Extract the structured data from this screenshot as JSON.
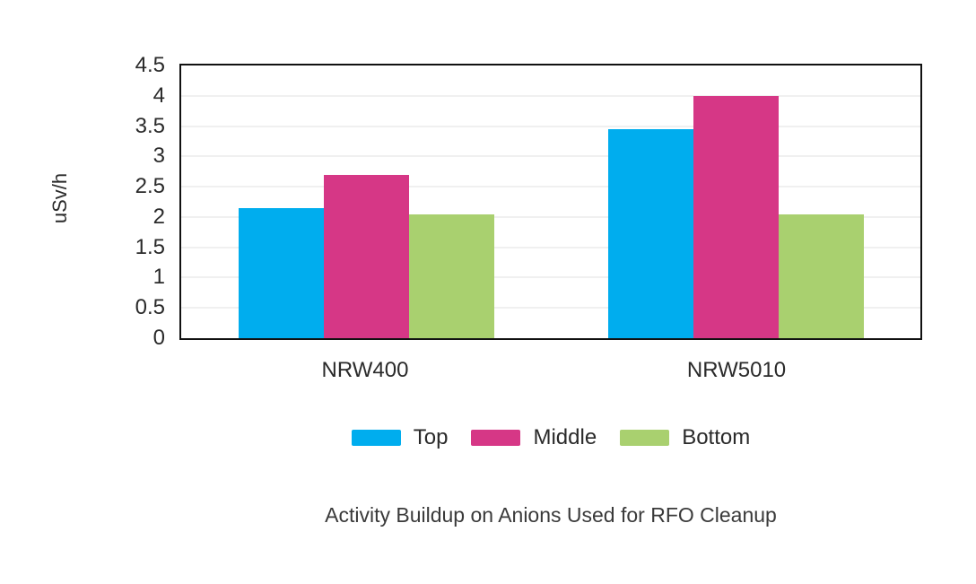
{
  "chart_data": {
    "type": "bar",
    "title": "Activity Buildup on Anions Used for RFO Cleanup",
    "ylabel": "uSv/h",
    "categories": [
      "NRW400",
      "NRW5010"
    ],
    "series": [
      {
        "name": "Top",
        "color": "#00ADEE",
        "values": [
          2.15,
          3.45
        ]
      },
      {
        "name": "Middle",
        "color": "#D63786",
        "values": [
          2.7,
          4.0
        ]
      },
      {
        "name": "Bottom",
        "color": "#A9D06F",
        "values": [
          2.05,
          2.05
        ]
      }
    ],
    "ylim": [
      0,
      4.5
    ],
    "ytick_step": 0.5,
    "ytick_labels": [
      "0",
      "0.5",
      "1",
      "1.5",
      "2",
      "2.5",
      "3",
      "3.5",
      "4",
      "4.5"
    ],
    "grid": "horizontal",
    "legend_position": "bottom"
  },
  "colors": {
    "background": "#ffffff",
    "axis_border": "#111111",
    "gridline": "#f0f0f0",
    "tick_text": "#2a2a2a",
    "title_text": "#3a3a3a"
  }
}
